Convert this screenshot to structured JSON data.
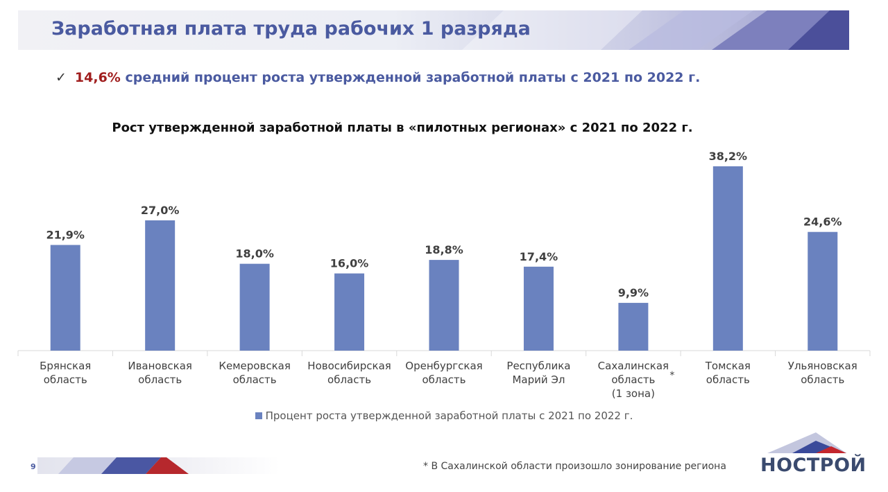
{
  "header": {
    "title": "Заработная плата труда рабочих 1 разряда"
  },
  "bullet": {
    "check": "✓",
    "highlight": "14,6%",
    "text": "средний процент роста утвержденной заработной платы с 2021 по 2022 г."
  },
  "chart_data": {
    "type": "bar",
    "title": "Рост утвержденной заработной платы в «пилотных регионах» с 2021 по 2022 г.",
    "categories": [
      [
        "Брянская",
        "область"
      ],
      [
        "Ивановская",
        "область"
      ],
      [
        "Кемеровская",
        "область"
      ],
      [
        "Новосибирская",
        "область"
      ],
      [
        "Оренбургская",
        "область"
      ],
      [
        "Республика",
        "Марий Эл"
      ],
      [
        "Сахалинская",
        "область",
        "(1 зона)"
      ],
      [
        "Томская",
        "область"
      ],
      [
        "Ульяновская",
        "область"
      ]
    ],
    "series": [
      {
        "name": "Процент роста утвержденной заработной платы с 2021 по 2022 г.",
        "values": [
          21.9,
          27.0,
          18.0,
          16.0,
          18.8,
          17.4,
          9.9,
          38.2,
          24.6
        ],
        "labels": [
          "21,9%",
          "27,0%",
          "18,0%",
          "16,0%",
          "18,8%",
          "17,4%",
          "9,9%",
          "38,2%",
          "24,6%"
        ]
      }
    ],
    "ylim": [
      0,
      40
    ],
    "grid": false,
    "legend": "bottom",
    "bar_color": "#6a82bf",
    "category_marker": {
      "index": 6,
      "text": "*"
    }
  },
  "footnote": "* В Сахалинской области произошло зонирование региона",
  "page_number": "9",
  "logo": {
    "text": "НОСТРОЙ"
  },
  "colors": {
    "title": "#4a5aa0",
    "accent": "#a01e1e",
    "bar": "#6a82bf"
  }
}
